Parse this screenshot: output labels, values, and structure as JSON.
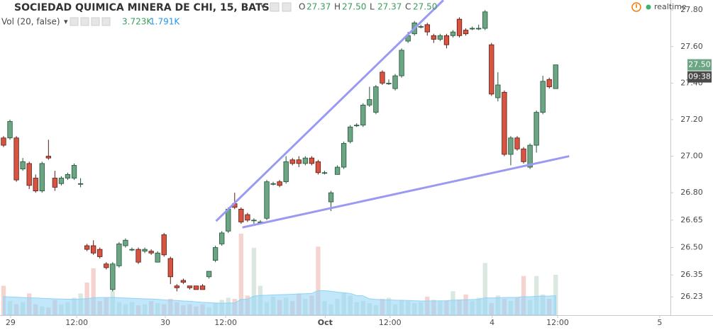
{
  "header": {
    "title": "SOCIEDAD QUIMICA MINERA DE CHI, 15, BATS",
    "ohlc": [
      {
        "label": "O",
        "value": "27.37"
      },
      {
        "label": "H",
        "value": "27.50"
      },
      {
        "label": "L",
        "value": "27.37"
      },
      {
        "label": "C",
        "value": "27.50"
      }
    ],
    "status": "realtime",
    "volume_title": "Vol (20, false)",
    "volume_value": "3.723K",
    "volume_ma_value": "1.791K"
  },
  "chart_data": {
    "type": "candlestick",
    "categories": [
      null,
      null,
      null,
      null,
      null,
      null,
      null,
      null,
      null,
      null,
      null,
      null,
      null,
      null,
      null,
      null,
      null,
      null,
      null,
      null,
      null,
      null,
      null,
      null,
      null,
      null,
      null,
      null,
      null,
      null,
      null,
      null,
      null,
      null,
      null,
      null,
      null,
      null,
      null,
      null,
      null,
      null,
      null,
      null,
      null,
      null,
      null,
      null,
      null,
      null,
      null,
      null,
      null,
      null,
      null,
      null,
      null,
      null,
      null,
      null,
      null,
      null,
      null,
      null,
      null,
      null,
      null,
      null,
      null,
      null,
      null,
      null,
      null,
      null,
      null,
      null,
      null,
      null,
      null,
      null,
      null,
      null,
      null,
      null,
      null,
      null,
      null
    ],
    "open": [
      27.1,
      27.1,
      27.1,
      26.93,
      26.96,
      26.88,
      26.81,
      27.0,
      26.88,
      26.85,
      26.88,
      26.88,
      26.85,
      26.51,
      26.51,
      26.49,
      26.41,
      26.27,
      26.4,
      26.51,
      26.49,
      26.49,
      26.48,
      26.48,
      26.42,
      26.57,
      26.44,
      26.29,
      26.32,
      26.29,
      26.29,
      26.29,
      26.34,
      26.43,
      26.52,
      26.59,
      26.74,
      26.71,
      26.68,
      26.65,
      26.64,
      26.66,
      26.85,
      26.86,
      26.86,
      26.98,
      26.98,
      26.96,
      26.99,
      26.97,
      26.91,
      26.75,
      26.9,
      26.94,
      27.08,
      27.17,
      27.17,
      27.28,
      27.24,
      27.46,
      27.4,
      27.37,
      27.44,
      27.63,
      27.67,
      27.71,
      27.72,
      27.66,
      27.64,
      27.66,
      27.66,
      27.75,
      27.69,
      27.7,
      27.7,
      27.7,
      27.61,
      27.32,
      27.35,
      27.01,
      27.1,
      27.04,
      26.94,
      27.06,
      27.24,
      27.42,
      27.37
    ],
    "high": [
      27.11,
      27.2,
      27.11,
      26.99,
      26.97,
      26.9,
      26.97,
      27.09,
      26.92,
      26.89,
      26.91,
      26.96,
      26.88,
      26.52,
      26.54,
      26.5,
      26.42,
      26.42,
      26.53,
      26.55,
      26.5,
      26.5,
      26.5,
      26.49,
      26.48,
      26.58,
      26.45,
      26.3,
      26.33,
      26.29,
      26.29,
      26.3,
      26.37,
      26.51,
      26.59,
      26.72,
      26.8,
      26.72,
      26.69,
      26.66,
      26.65,
      26.87,
      26.86,
      26.87,
      27.0,
      26.99,
      27.0,
      27.0,
      27.0,
      26.98,
      26.92,
      26.81,
      26.95,
      27.08,
      27.17,
      27.18,
      27.29,
      27.38,
      27.39,
      27.47,
      27.42,
      27.45,
      27.59,
      27.68,
      27.74,
      27.72,
      27.73,
      27.67,
      27.67,
      27.67,
      27.69,
      27.76,
      27.7,
      27.71,
      27.72,
      27.8,
      27.62,
      27.46,
      27.36,
      27.11,
      27.11,
      27.05,
      27.07,
      27.25,
      27.44,
      27.43,
      27.5
    ],
    "low": [
      27.05,
      27.09,
      26.86,
      26.92,
      26.82,
      26.8,
      26.8,
      26.98,
      26.81,
      26.84,
      26.87,
      26.87,
      26.83,
      26.48,
      26.46,
      26.44,
      26.38,
      26.26,
      26.39,
      26.5,
      26.48,
      26.41,
      26.47,
      26.46,
      26.42,
      26.45,
      26.3,
      26.26,
      26.3,
      26.27,
      26.27,
      26.27,
      26.33,
      26.42,
      26.51,
      26.58,
      26.71,
      26.63,
      26.64,
      26.63,
      26.63,
      26.65,
      26.84,
      26.83,
      26.85,
      26.95,
      26.94,
      26.95,
      26.95,
      26.9,
      26.9,
      26.7,
      26.9,
      26.93,
      27.07,
      27.16,
      27.16,
      27.27,
      27.23,
      27.39,
      27.39,
      27.36,
      27.43,
      27.62,
      27.66,
      27.7,
      27.66,
      27.62,
      27.63,
      27.59,
      27.65,
      27.65,
      27.66,
      27.69,
      27.69,
      27.69,
      27.33,
      27.3,
      27.0,
      26.95,
      27.03,
      26.96,
      26.93,
      27.02,
      27.23,
      27.37,
      27.37
    ],
    "close": [
      27.06,
      27.19,
      26.87,
      26.97,
      26.84,
      26.81,
      26.96,
      26.99,
      26.83,
      26.88,
      26.9,
      26.95,
      26.85,
      26.49,
      26.47,
      26.45,
      26.39,
      26.41,
      26.52,
      26.54,
      26.49,
      26.42,
      26.49,
      26.47,
      26.47,
      26.46,
      26.34,
      26.28,
      26.31,
      26.28,
      26.27,
      26.27,
      26.37,
      26.5,
      26.58,
      26.71,
      26.72,
      26.64,
      26.65,
      26.65,
      26.64,
      26.86,
      26.85,
      26.84,
      26.97,
      26.96,
      26.96,
      26.99,
      26.96,
      26.91,
      26.91,
      26.8,
      26.94,
      27.07,
      27.16,
      27.17,
      27.28,
      27.31,
      27.38,
      27.4,
      27.4,
      27.44,
      27.58,
      27.66,
      27.73,
      27.71,
      27.68,
      27.64,
      27.66,
      27.61,
      27.68,
      27.66,
      27.67,
      27.7,
      27.7,
      27.79,
      27.34,
      27.39,
      27.01,
      27.1,
      27.04,
      26.97,
      27.06,
      27.24,
      27.41,
      27.38,
      27.5
    ],
    "volume": [
      2.7,
      1.3,
      1.0,
      1.2,
      2.0,
      1.0,
      0.8,
      0.7,
      1.4,
      1.0,
      1.2,
      1.6,
      2.0,
      3.0,
      4.3,
      1.3,
      1.6,
      2.2,
      1.2,
      1.0,
      1.2,
      0.9,
      1.0,
      1.3,
      1.1,
      1.0,
      1.5,
      1.2,
      0.9,
      1.0,
      0.8,
      1.0,
      0.7,
      1.1,
      1.4,
      1.6,
      1.5,
      7.5,
      1.8,
      6.2,
      2.7,
      1.2,
      1.7,
      1.4,
      1.6,
      1.3,
      2.0,
      1.5,
      1.8,
      6.3,
      1.3,
      1.0,
      1.5,
      2.1,
      1.8,
      1.2,
      1.3,
      1.1,
      0.9,
      1.5,
      1.6,
      1.0,
      1.4,
      1.3,
      1.1,
      1.2,
      1.7,
      1.4,
      1.3,
      1.3,
      2.2,
      1.4,
      1.9,
      1.3,
      1.6,
      4.8,
      1.1,
      1.8,
      1.5,
      1.3,
      1.6,
      3.6,
      1.4,
      3.6,
      1.9,
      1.5,
      3.723
    ],
    "volume_ma": [
      1.7,
      1.68,
      1.65,
      1.62,
      1.6,
      1.58,
      1.55,
      1.52,
      1.5,
      1.48,
      1.47,
      1.46,
      1.48,
      1.52,
      1.6,
      1.62,
      1.62,
      1.63,
      1.6,
      1.58,
      1.55,
      1.52,
      1.5,
      1.48,
      1.45,
      1.4,
      1.38,
      1.35,
      1.3,
      1.28,
      1.22,
      1.18,
      1.15,
      1.12,
      1.1,
      1.12,
      1.13,
      1.45,
      1.48,
      1.75,
      1.82,
      1.83,
      1.86,
      1.88,
      1.9,
      1.92,
      1.95,
      1.97,
      2.0,
      2.26,
      2.25,
      2.2,
      2.12,
      2.05,
      2.0,
      1.8,
      1.78,
      1.5,
      1.45,
      1.42,
      1.4,
      1.38,
      1.36,
      1.35,
      1.32,
      1.3,
      1.3,
      1.31,
      1.32,
      1.33,
      1.38,
      1.4,
      1.42,
      1.43,
      1.45,
      1.6,
      1.58,
      1.6,
      1.62,
      1.63,
      1.64,
      1.7,
      1.69,
      1.74,
      1.75,
      1.76,
      1.791
    ],
    "volume_lim": [
      0,
      29
    ],
    "up_color": "#6ba583",
    "down_color": "#d75442",
    "ma_color": "#8fd3f7",
    "xlim": [
      -0.55,
      103.87
    ],
    "xticks": [
      {
        "value": 1.1,
        "label": "29"
      },
      {
        "value": 11.4,
        "label": "12:00"
      },
      {
        "value": 25.2,
        "label": "30"
      },
      {
        "value": 34.6,
        "label": "12:00"
      },
      {
        "value": 50.1,
        "label": "Oct"
      },
      {
        "value": 60.2,
        "label": "12:00"
      },
      {
        "value": 76.1,
        "label": "4"
      },
      {
        "value": 86.3,
        "label": "12:00"
      },
      {
        "value": 102.2,
        "label": "5"
      }
    ],
    "ylim": [
      26.13,
      27.855
    ],
    "yticks": [
      {
        "value": 27.8,
        "label": "27.80"
      },
      {
        "value": 27.6,
        "label": "27.60"
      },
      {
        "value": 27.4,
        "label": "27.40"
      },
      {
        "value": 27.2,
        "label": "27.20"
      },
      {
        "value": 27.0,
        "label": "27.00"
      },
      {
        "value": 26.8,
        "label": "26.80"
      },
      {
        "value": 26.65,
        "label": "26.65"
      },
      {
        "value": 26.5,
        "label": "26.50"
      },
      {
        "value": 26.35,
        "label": "26.35"
      },
      {
        "value": 26.23,
        "label": "26.23"
      }
    ],
    "last_price": {
      "value": 27.5,
      "label": "27.50"
    },
    "countdown": "09:38",
    "trend_lines": [
      {
        "x": [
          33.1,
          68.5
        ],
        "y": [
          26.645,
          27.854
        ],
        "color": "#9a9af2"
      },
      {
        "x": [
          37.2,
          88.1
        ],
        "y": [
          26.61,
          27.0
        ],
        "color": "#9a9af2"
      }
    ]
  }
}
